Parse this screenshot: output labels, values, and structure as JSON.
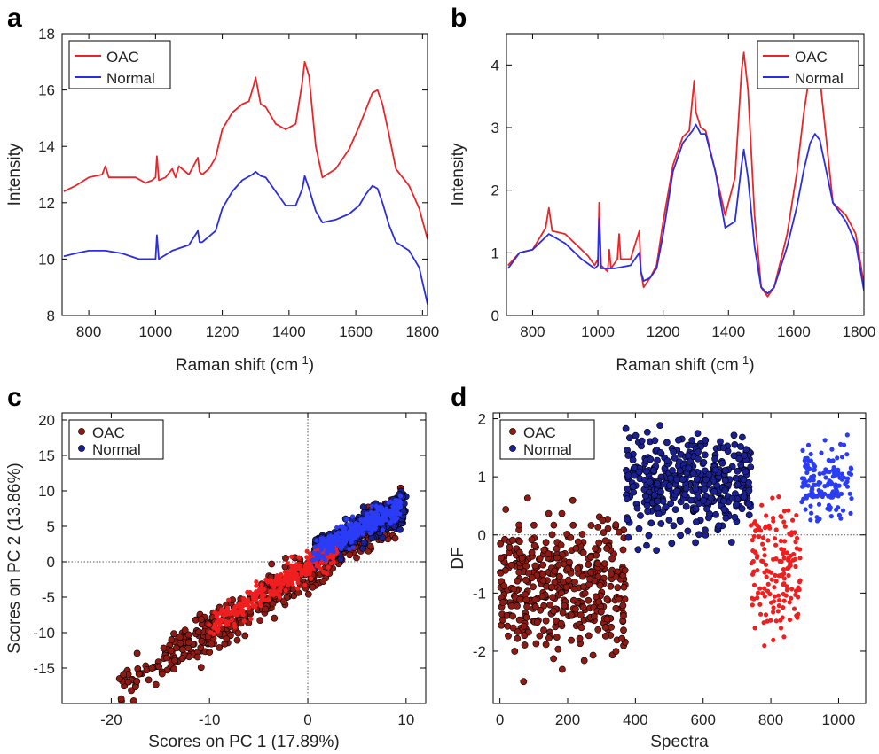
{
  "chart_data": [
    {
      "panel": "a",
      "type": "line",
      "xlabel": "Raman shift (cm",
      "xlabel_sup": "-1",
      "xlabel_close": ")",
      "ylabel": "Intensity",
      "xlim": [
        720,
        1815
      ],
      "ylim": [
        8,
        18
      ],
      "xticks": [
        800,
        1000,
        1200,
        1400,
        1600,
        1800
      ],
      "yticks": [
        8,
        10,
        12,
        14,
        16,
        18
      ],
      "legend": "top-left",
      "series": [
        {
          "name": "OAC",
          "color": "#e8262a",
          "x": [
            725,
            760,
            800,
            840,
            850,
            860,
            900,
            940,
            970,
            990,
            1000,
            1004,
            1010,
            1030,
            1050,
            1060,
            1070,
            1100,
            1127,
            1132,
            1140,
            1160,
            1180,
            1200,
            1230,
            1260,
            1280,
            1295,
            1300,
            1315,
            1330,
            1360,
            1390,
            1420,
            1440,
            1447,
            1460,
            1480,
            1500,
            1540,
            1580,
            1610,
            1630,
            1650,
            1665,
            1680,
            1700,
            1720,
            1760,
            1790,
            1815
          ],
          "y": [
            12.4,
            12.6,
            12.9,
            13.0,
            13.3,
            12.9,
            12.9,
            12.9,
            12.7,
            12.8,
            12.9,
            13.65,
            12.8,
            12.9,
            13.2,
            12.9,
            13.3,
            13.0,
            13.6,
            13.1,
            13.0,
            13.2,
            13.6,
            14.6,
            15.2,
            15.5,
            15.6,
            16.2,
            16.45,
            15.5,
            15.4,
            14.8,
            14.6,
            14.8,
            16.3,
            17.0,
            16.5,
            14.0,
            12.9,
            13.2,
            13.9,
            14.7,
            15.3,
            15.9,
            16.0,
            15.5,
            14.4,
            13.2,
            12.6,
            11.8,
            10.7
          ]
        },
        {
          "name": "Normal",
          "color": "#2b2de0",
          "x": [
            725,
            760,
            800,
            850,
            900,
            950,
            990,
            1000,
            1004,
            1010,
            1050,
            1100,
            1127,
            1132,
            1140,
            1180,
            1200,
            1230,
            1260,
            1290,
            1300,
            1315,
            1330,
            1360,
            1390,
            1420,
            1440,
            1447,
            1460,
            1480,
            1500,
            1540,
            1580,
            1610,
            1630,
            1650,
            1665,
            1680,
            1700,
            1720,
            1760,
            1790,
            1815
          ],
          "y": [
            10.1,
            10.2,
            10.3,
            10.3,
            10.2,
            10.0,
            10.0,
            10.0,
            10.85,
            10.0,
            10.3,
            10.5,
            11.0,
            10.6,
            10.6,
            11.0,
            11.8,
            12.4,
            12.8,
            13.0,
            13.1,
            12.95,
            12.9,
            12.4,
            11.9,
            11.9,
            12.5,
            12.95,
            12.5,
            11.7,
            11.3,
            11.4,
            11.6,
            11.9,
            12.3,
            12.6,
            12.5,
            12.0,
            11.2,
            10.6,
            10.3,
            9.7,
            8.4
          ]
        }
      ]
    },
    {
      "panel": "b",
      "type": "line",
      "xlabel": "Raman shift (cm",
      "xlabel_sup": "-1",
      "xlabel_close": ")",
      "ylabel": "Intensity",
      "xlim": [
        720,
        1815
      ],
      "ylim": [
        0,
        4.5
      ],
      "xticks": [
        800,
        1000,
        1200,
        1400,
        1600,
        1800
      ],
      "yticks": [
        0,
        1,
        2,
        3,
        4
      ],
      "legend": "top-right",
      "series": [
        {
          "name": "OAC",
          "color": "#e8262a",
          "x": [
            725,
            760,
            800,
            840,
            850,
            860,
            900,
            940,
            970,
            990,
            1000,
            1004,
            1010,
            1030,
            1035,
            1040,
            1060,
            1065,
            1070,
            1100,
            1127,
            1132,
            1140,
            1160,
            1180,
            1200,
            1230,
            1260,
            1280,
            1295,
            1300,
            1315,
            1330,
            1360,
            1390,
            1420,
            1440,
            1447,
            1460,
            1480,
            1500,
            1520,
            1540,
            1580,
            1610,
            1630,
            1650,
            1665,
            1680,
            1700,
            1720,
            1760,
            1790,
            1815
          ],
          "y": [
            0.8,
            1.0,
            1.05,
            1.4,
            1.72,
            1.35,
            1.3,
            1.1,
            0.95,
            0.8,
            0.9,
            1.8,
            0.8,
            0.7,
            1.05,
            0.75,
            0.9,
            1.3,
            0.9,
            0.9,
            1.35,
            0.7,
            0.45,
            0.6,
            0.8,
            1.5,
            2.4,
            2.85,
            2.95,
            3.75,
            3.25,
            3.0,
            2.95,
            2.3,
            1.6,
            2.2,
            3.9,
            4.2,
            3.6,
            1.6,
            0.45,
            0.3,
            0.45,
            1.3,
            2.3,
            3.2,
            3.9,
            4.1,
            3.8,
            2.8,
            1.8,
            1.6,
            1.3,
            0.5
          ]
        },
        {
          "name": "Normal",
          "color": "#2b2de0",
          "x": [
            725,
            760,
            800,
            850,
            900,
            950,
            990,
            1000,
            1004,
            1010,
            1050,
            1100,
            1127,
            1132,
            1140,
            1160,
            1180,
            1200,
            1230,
            1260,
            1290,
            1300,
            1315,
            1330,
            1360,
            1390,
            1420,
            1440,
            1447,
            1460,
            1480,
            1500,
            1520,
            1540,
            1580,
            1610,
            1630,
            1650,
            1665,
            1680,
            1700,
            1720,
            1760,
            1790,
            1815
          ],
          "y": [
            0.75,
            1.0,
            1.05,
            1.3,
            1.15,
            0.9,
            0.75,
            0.8,
            1.55,
            0.75,
            0.75,
            0.8,
            1.0,
            0.7,
            0.55,
            0.6,
            0.75,
            1.3,
            2.3,
            2.75,
            2.95,
            3.05,
            2.9,
            2.9,
            2.3,
            1.4,
            1.5,
            2.4,
            2.65,
            2.2,
            1.1,
            0.45,
            0.35,
            0.45,
            1.1,
            1.75,
            2.3,
            2.75,
            2.9,
            2.8,
            2.3,
            1.8,
            1.5,
            1.15,
            0.4
          ]
        }
      ]
    },
    {
      "panel": "c",
      "type": "scatter",
      "xlabel": "Scores on PC 1 (17.89%)",
      "ylabel": "Scores on PC 2 (13.86%)",
      "xlim": [
        -25,
        12
      ],
      "ylim": [
        -20,
        21
      ],
      "xticks": [
        -20,
        -10,
        0,
        10
      ],
      "yticks": [
        -15,
        -10,
        -5,
        0,
        5,
        10,
        15,
        20
      ],
      "reference_lines": {
        "x": 0,
        "y": 0
      },
      "legend": "top-left",
      "series": [
        {
          "name": "OAC",
          "color": "#8e1a14",
          "model": "y = 0.88x - 1.2, spread ±2.6",
          "x_range": [
            -19.5,
            9.5
          ],
          "count": 520
        },
        {
          "name": "Normal",
          "color": "#1a2090",
          "model": "y = 0.7x + 0.8, spread ±1.8",
          "x_range": [
            0.5,
            10.0
          ],
          "count": 360
        }
      ],
      "extra_series": [
        {
          "color": "#f01f1f",
          "model": "y = 0.85x - 0.6, spread ±1.6",
          "x_range": [
            -10.5,
            3.0
          ],
          "count": 300
        },
        {
          "color": "#2a3cf5",
          "model": "y = 0.75x + 0.8, spread ±1.3",
          "x_range": [
            0.5,
            9.5
          ],
          "count": 320
        }
      ]
    },
    {
      "panel": "d",
      "type": "scatter",
      "xlabel": "Spectra",
      "ylabel": "DF",
      "xlim": [
        -20,
        1080
      ],
      "ylim": [
        -2.9,
        2.1
      ],
      "xticks": [
        0,
        200,
        400,
        600,
        800,
        1000
      ],
      "yticks": [
        -2,
        -1,
        0,
        1,
        2
      ],
      "reference_lines": {
        "y": 0
      },
      "legend": "top-left",
      "series": [
        {
          "name": "OAC",
          "color": "#8e1a14",
          "x_range": [
            0,
            370
          ],
          "y_center": -0.9,
          "y_spread": 0.55,
          "count": 420
        },
        {
          "name": "Normal",
          "color": "#1a2090",
          "x_range": [
            370,
            740
          ],
          "y_center": 0.9,
          "y_spread": 0.4,
          "count": 420
        }
      ],
      "extra_series": [
        {
          "color": "#f01f1f",
          "x_range": [
            740,
            890
          ],
          "y_center": -0.55,
          "y_spread": 0.5,
          "count": 160
        },
        {
          "color": "#2a3cf5",
          "x_range": [
            890,
            1040
          ],
          "y_center": 0.95,
          "y_spread": 0.3,
          "count": 150
        }
      ]
    }
  ]
}
